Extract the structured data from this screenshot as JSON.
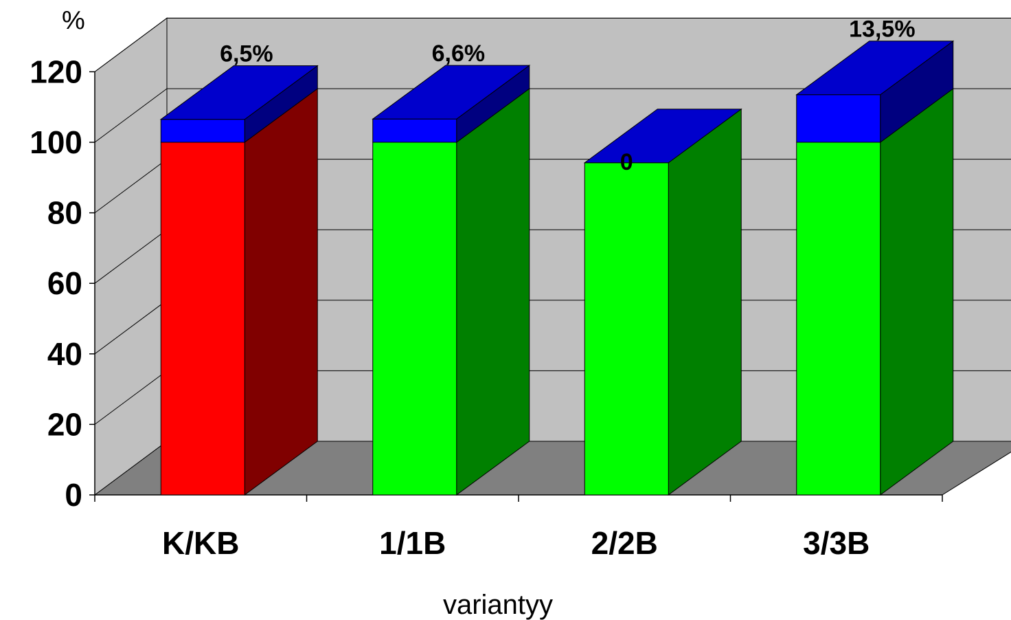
{
  "chart_data": {
    "type": "bar",
    "stacked": true,
    "three_d": true,
    "title": "",
    "xlabel": "variantyy",
    "ylabel": "%",
    "ylim": [
      0,
      120
    ],
    "yticks": [
      0,
      20,
      40,
      60,
      80,
      100,
      120
    ],
    "grid": true,
    "categories": [
      "K/KB",
      "1/1B",
      "2/2B",
      "3/3B"
    ],
    "series": [
      {
        "values": [
          100,
          100,
          94.2,
          100
        ]
      },
      {
        "values": [
          6.5,
          6.6,
          0,
          13.5
        ]
      }
    ],
    "data_labels": [
      "6,5%",
      "6,6%",
      "0",
      "13,5%"
    ],
    "colors": {
      "base_first": "#ff0000",
      "base_first_side": "#800000",
      "base_other": "#00ff00",
      "base_other_side": "#008000",
      "top_front": "#0000ff",
      "top_face": "#0000cc",
      "top_side": "#000080",
      "wall": "#c0c0c0",
      "floor": "#808080"
    }
  }
}
